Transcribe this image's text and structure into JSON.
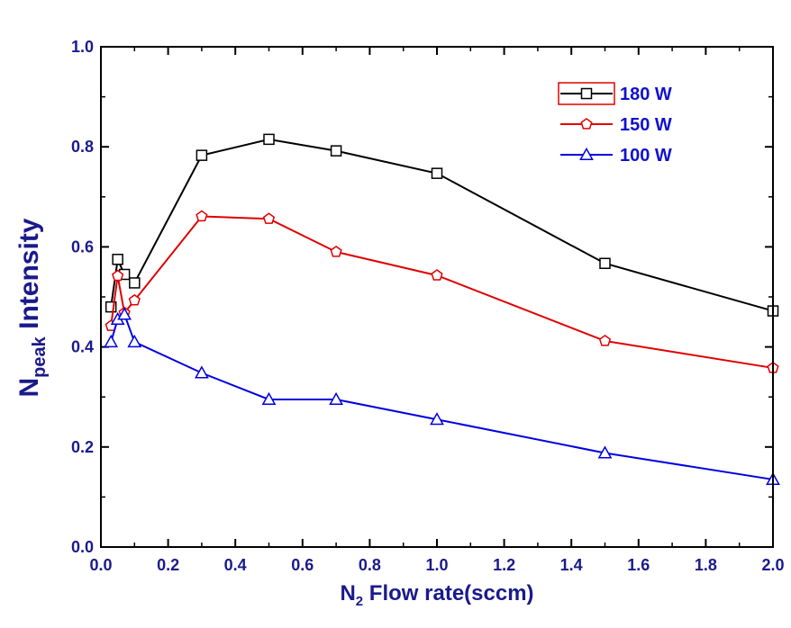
{
  "chart_data": {
    "type": "line",
    "title": "",
    "xlabel": {
      "main": "N",
      "sub": "2",
      "rest": " Flow rate(sccm)"
    },
    "ylabel": {
      "main": "N",
      "sub": "peak",
      "rest": " Intensity"
    },
    "xlim": [
      0.0,
      2.0
    ],
    "ylim": [
      0.0,
      1.0
    ],
    "xticks": [
      "0.0",
      "0.2",
      "0.4",
      "0.6",
      "0.8",
      "1.0",
      "1.2",
      "1.4",
      "1.6",
      "1.8",
      "2.0"
    ],
    "yticks": [
      "0.0",
      "0.2",
      "0.4",
      "0.6",
      "0.8",
      "1.0"
    ],
    "grid": false,
    "legend_position": "top-right",
    "series": [
      {
        "name": "180 W",
        "color": "#000000",
        "marker": "square",
        "x": [
          0.03,
          0.05,
          0.07,
          0.1,
          0.3,
          0.5,
          0.7,
          1.0,
          1.5,
          2.0
        ],
        "y": [
          0.48,
          0.575,
          0.545,
          0.528,
          0.783,
          0.815,
          0.792,
          0.747,
          0.567,
          0.472
        ]
      },
      {
        "name": "150 W",
        "color": "#e00000",
        "marker": "pentagon",
        "x": [
          0.03,
          0.05,
          0.07,
          0.1,
          0.3,
          0.5,
          0.7,
          1.0,
          1.5,
          2.0
        ],
        "y": [
          0.442,
          0.542,
          0.468,
          0.493,
          0.661,
          0.656,
          0.59,
          0.543,
          0.412,
          0.358
        ]
      },
      {
        "name": "100 W",
        "color": "#0000e0",
        "marker": "triangle",
        "x": [
          0.03,
          0.05,
          0.07,
          0.1,
          0.3,
          0.5,
          0.7,
          1.0,
          1.5,
          2.0
        ],
        "y": [
          0.41,
          0.455,
          0.465,
          0.41,
          0.348,
          0.295,
          0.295,
          0.255,
          0.188,
          0.135
        ]
      }
    ]
  }
}
